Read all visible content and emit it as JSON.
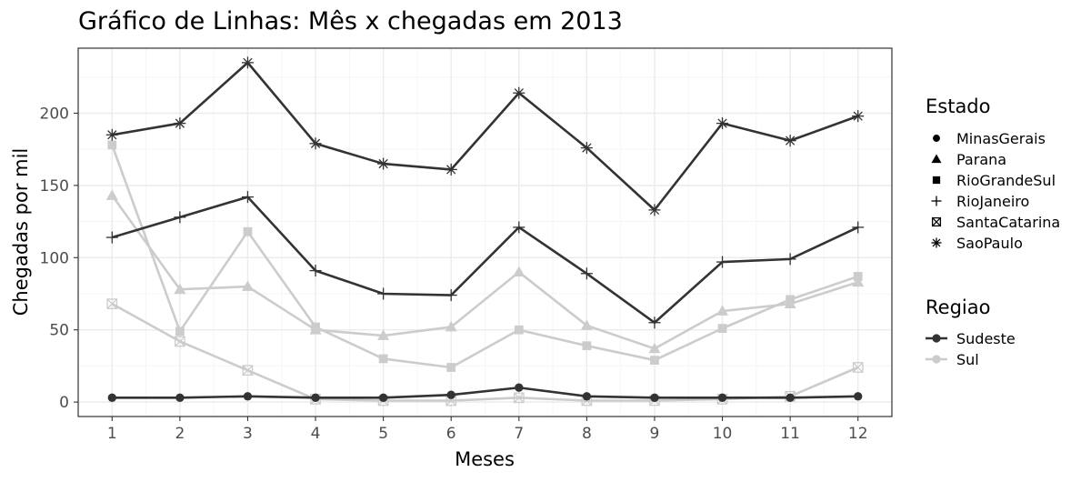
{
  "chart_data": {
    "type": "line",
    "title": "Gráfico de Linhas: Mês x chegadas em 2013",
    "xlabel": "Meses",
    "ylabel": "Chegadas por mil",
    "x": [
      1,
      2,
      3,
      4,
      5,
      6,
      7,
      8,
      9,
      10,
      11,
      12
    ],
    "xlim": [
      0.5,
      12.5
    ],
    "ylim": [
      -10,
      245
    ],
    "yticks": [
      0,
      50,
      100,
      150,
      200
    ],
    "grid": true,
    "legend_position": "right",
    "series": [
      {
        "name": "SaoPaulo",
        "regiao": "Sudeste",
        "values": [
          185,
          193,
          235,
          179,
          165,
          161,
          214,
          176,
          133,
          193,
          181,
          198
        ]
      },
      {
        "name": "RioJaneiro",
        "regiao": "Sudeste",
        "values": [
          114,
          128,
          142,
          91,
          75,
          74,
          121,
          89,
          55,
          97,
          99,
          121
        ]
      },
      {
        "name": "MinasGerais",
        "regiao": "Sudeste",
        "values": [
          3,
          3,
          4,
          3,
          3,
          5,
          10,
          4,
          3,
          3,
          3,
          4
        ]
      },
      {
        "name": "Parana",
        "regiao": "Sul",
        "values": [
          143,
          78,
          80,
          50,
          46,
          52,
          90,
          53,
          37,
          63,
          68,
          83
        ]
      },
      {
        "name": "RioGrandeSul",
        "regiao": "Sul",
        "values": [
          178,
          49,
          118,
          52,
          30,
          24,
          50,
          39,
          29,
          51,
          71,
          87
        ]
      },
      {
        "name": "SantaCatarina",
        "regiao": "Sul",
        "values": [
          68,
          42,
          22,
          2,
          1,
          1,
          3,
          1,
          1,
          2,
          4,
          24
        ]
      }
    ],
    "legend_estado": {
      "title": "Estado",
      "items": [
        "MinasGerais",
        "Parana",
        "RioGrandeSul",
        "RioJaneiro",
        "SantaCatarina",
        "SaoPaulo"
      ]
    },
    "legend_regiao": {
      "title": "Regiao",
      "items": [
        "Sudeste",
        "Sul"
      ]
    },
    "colors": {
      "Sudeste": "#333333",
      "Sul": "#cccccc",
      "panel_border": "#333333",
      "grid_major": "#ebebeb",
      "grid_minor": "#f5f5f5"
    },
    "shapes": {
      "MinasGerais": "circle",
      "Parana": "triangle",
      "RioGrandeSul": "square",
      "RioJaneiro": "plus",
      "SantaCatarina": "square-cross",
      "SaoPaulo": "asterisk"
    }
  }
}
